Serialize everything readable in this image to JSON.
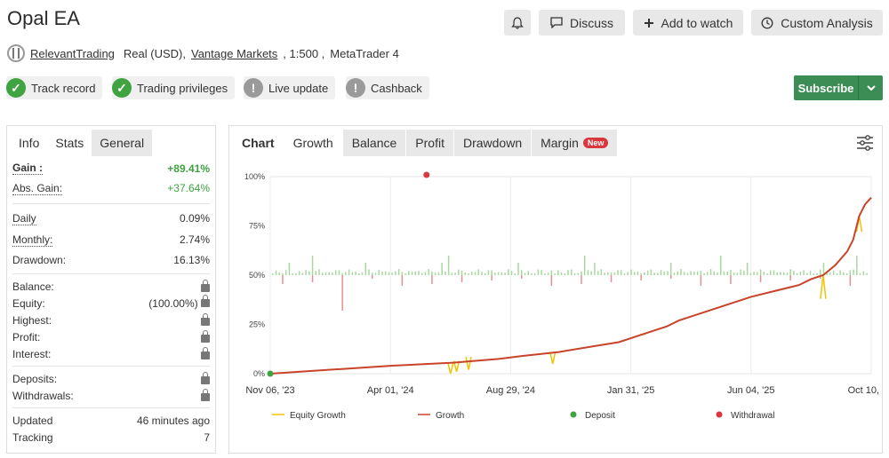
{
  "header": {
    "title": "Opal EA",
    "discuss_label": "Discuss",
    "watch_label": "Add to watch",
    "analysis_label": "Custom Analysis"
  },
  "account": {
    "owner": "RelevantTrading",
    "type": "Real (USD),",
    "broker": "Vantage Markets",
    "leverage": ", 1:500 ,",
    "platform": "MetaTrader 4"
  },
  "badges": [
    {
      "label": "Track record",
      "status": "ok"
    },
    {
      "label": "Trading privileges",
      "status": "ok"
    },
    {
      "label": "Live update",
      "status": "no"
    },
    {
      "label": "Cashback",
      "status": "no"
    }
  ],
  "subscribe_label": "Subscribe",
  "left_tabs": [
    "Info",
    "Stats",
    "General"
  ],
  "stats": {
    "gain_label": "Gain :",
    "gain_value": "+89.41%",
    "abs_gain_label": "Abs. Gain:",
    "abs_gain_value": "+37.64%",
    "daily_label": "Daily",
    "daily_value": "0.09%",
    "monthly_label": "Monthly:",
    "monthly_value": "2.74%",
    "drawdown_label": "Drawdown:",
    "drawdown_value": "16.13%",
    "balance_label": "Balance:",
    "equity_label": "Equity:",
    "equity_value": "(100.00%)",
    "highest_label": "Highest:",
    "profit_label": "Profit:",
    "interest_label": "Interest:",
    "deposits_label": "Deposits:",
    "withdrawals_label": "Withdrawals:",
    "updated_label": "Updated",
    "updated_value": "46 minutes ago",
    "tracking_label": "Tracking",
    "tracking_value": "7"
  },
  "chart_tabs": [
    "Chart",
    "Growth",
    "Balance",
    "Profit",
    "Drawdown",
    "Margin"
  ],
  "new_badge": "New",
  "chart_data": {
    "type": "line",
    "x_ticks": [
      "Nov 06, '23",
      "Apr 01, '24",
      "Aug 29, '24",
      "Jan 31, '25",
      "Jun 04, '25",
      "Oct 10, '25"
    ],
    "y_ticks": [
      "0%",
      "25%",
      "50%",
      "75%",
      "100%"
    ],
    "ylim": [
      0,
      100
    ],
    "legend": [
      "Equity Growth",
      "Growth",
      "Deposit",
      "Withdrawal"
    ],
    "colors": {
      "equity": "#f2c200",
      "growth": "#c8432a",
      "deposit": "#3ea340",
      "withdrawal": "#d9363e",
      "bars_pos": "#a8d8a0",
      "bars_neg": "#e99090"
    },
    "growth_points": [
      [
        0,
        0
      ],
      [
        10,
        2
      ],
      [
        20,
        4
      ],
      [
        30,
        5.5
      ],
      [
        38,
        7.5
      ],
      [
        42,
        9
      ],
      [
        48,
        11
      ],
      [
        54,
        14
      ],
      [
        58,
        16
      ],
      [
        62,
        20
      ],
      [
        66,
        24
      ],
      [
        68,
        27
      ],
      [
        72,
        31
      ],
      [
        76,
        35
      ],
      [
        80,
        39
      ],
      [
        84,
        42
      ],
      [
        88,
        45
      ],
      [
        90,
        48
      ],
      [
        92,
        50
      ],
      [
        94,
        55
      ],
      [
        96,
        62
      ],
      [
        97,
        68
      ],
      [
        98,
        80
      ],
      [
        99,
        86
      ],
      [
        100,
        89.4
      ]
    ],
    "equity_dips": [
      [
        30,
        0,
        5.5
      ],
      [
        31,
        1,
        6.5
      ],
      [
        33,
        2,
        8.5
      ],
      [
        47,
        5,
        11
      ],
      [
        62,
        20,
        20
      ],
      [
        92,
        50,
        38
      ],
      [
        98,
        80,
        72
      ]
    ],
    "deposit": {
      "x": 0,
      "y": 0
    },
    "withdrawal": {
      "x": 26,
      "y": 100
    }
  }
}
